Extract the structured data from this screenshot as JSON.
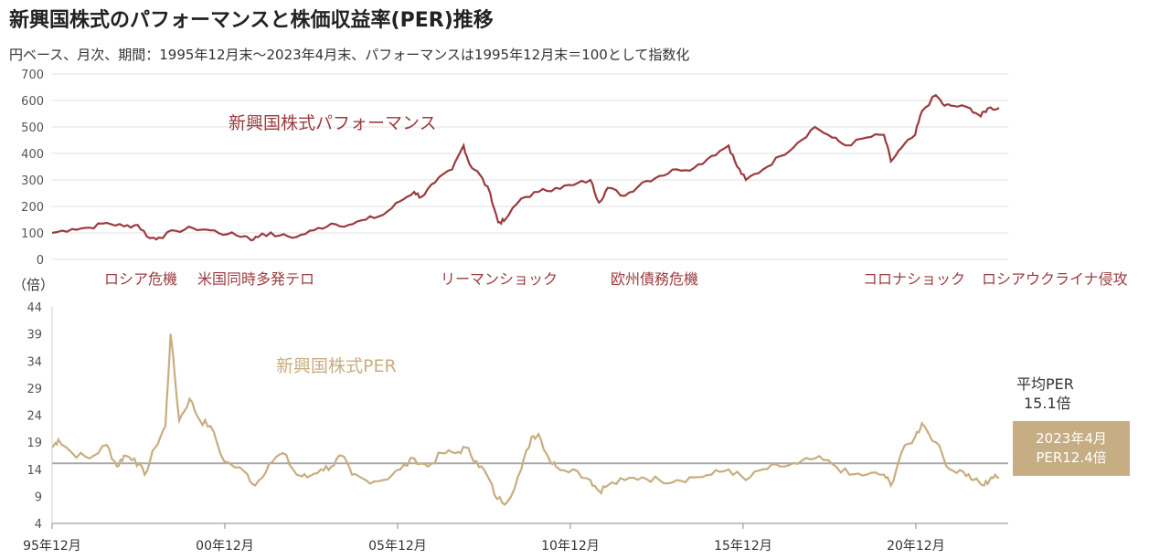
{
  "title": "新興国株式のパフォーマンスと株価収益率(PER)推移",
  "subtitle": "円ベース、月次、期間：1995年12月末～2023年4月末、パフォーマンスは1995年12月末＝100として指数化",
  "colors": {
    "performance": "#9b3b3f",
    "per": "#c8ad7f",
    "avg": "#a9a9a9",
    "box": "#c6ad84"
  },
  "chart_data": [
    {
      "type": "line",
      "series": [
        {
          "name": "新興国株式パフォーマンス",
          "x_range": [
            "1995-12",
            "2023-04"
          ],
          "points": [
            [
              1995.92,
              100
            ],
            [
              1996.5,
              115
            ],
            [
              1997.0,
              120
            ],
            [
              1997.5,
              138
            ],
            [
              1998.0,
              125
            ],
            [
              1998.4,
              130
            ],
            [
              1998.75,
              80
            ],
            [
              1999.0,
              82
            ],
            [
              1999.5,
              108
            ],
            [
              2000.0,
              118
            ],
            [
              2000.5,
              110
            ],
            [
              2001.0,
              95
            ],
            [
              2001.5,
              88
            ],
            [
              2001.75,
              75
            ],
            [
              2002.0,
              98
            ],
            [
              2002.5,
              90
            ],
            [
              2003.0,
              85
            ],
            [
              2003.5,
              110
            ],
            [
              2004.0,
              135
            ],
            [
              2004.5,
              130
            ],
            [
              2005.0,
              150
            ],
            [
              2005.5,
              168
            ],
            [
              2006.0,
              220
            ],
            [
              2006.4,
              255
            ],
            [
              2006.6,
              235
            ],
            [
              2007.0,
              290
            ],
            [
              2007.5,
              340
            ],
            [
              2007.83,
              430
            ],
            [
              2008.0,
              360
            ],
            [
              2008.3,
              320
            ],
            [
              2008.6,
              250
            ],
            [
              2008.83,
              140
            ],
            [
              2009.0,
              145
            ],
            [
              2009.5,
              230
            ],
            [
              2010.0,
              255
            ],
            [
              2010.5,
              270
            ],
            [
              2011.0,
              280
            ],
            [
              2011.5,
              300
            ],
            [
              2011.75,
              215
            ],
            [
              2012.0,
              270
            ],
            [
              2012.5,
              240
            ],
            [
              2013.0,
              290
            ],
            [
              2013.5,
              315
            ],
            [
              2014.0,
              340
            ],
            [
              2014.5,
              345
            ],
            [
              2015.0,
              390
            ],
            [
              2015.5,
              430
            ],
            [
              2015.75,
              350
            ],
            [
              2016.0,
              300
            ],
            [
              2016.5,
              340
            ],
            [
              2017.0,
              390
            ],
            [
              2017.5,
              440
            ],
            [
              2018.0,
              500
            ],
            [
              2018.5,
              460
            ],
            [
              2018.9,
              430
            ],
            [
              2019.5,
              460
            ],
            [
              2020.0,
              470
            ],
            [
              2020.2,
              370
            ],
            [
              2020.5,
              420
            ],
            [
              2020.9,
              470
            ],
            [
              2021.1,
              560
            ],
            [
              2021.5,
              620
            ],
            [
              2021.75,
              580
            ],
            [
              2022.0,
              580
            ],
            [
              2022.5,
              570
            ],
            [
              2022.8,
              540
            ],
            [
              2023.0,
              570
            ],
            [
              2023.33,
              572
            ]
          ]
        }
      ],
      "ylim": [
        0,
        700
      ],
      "yticks": [
        "0",
        "100",
        "200",
        "300",
        "400",
        "500",
        "600",
        "700"
      ],
      "series_label": "新興国株式パフォーマンス",
      "annotations": [
        "ロシア危機",
        "米国同時多発テロ",
        "リーマンショック",
        "欧州債務危機",
        "コロナショック",
        "ロシアウクライナ侵攻"
      ]
    },
    {
      "type": "line",
      "series": [
        {
          "name": "新興国株式PER",
          "points": [
            [
              1995.92,
              18
            ],
            [
              1996.1,
              19.5
            ],
            [
              1996.5,
              17
            ],
            [
              1997.0,
              16
            ],
            [
              1997.5,
              18.5
            ],
            [
              1997.8,
              14.5
            ],
            [
              1998.0,
              16.5
            ],
            [
              1998.3,
              16
            ],
            [
              1998.6,
              13
            ],
            [
              1998.9,
              18
            ],
            [
              1999.2,
              22
            ],
            [
              1999.35,
              39
            ],
            [
              1999.6,
              23
            ],
            [
              1999.9,
              27
            ],
            [
              2000.2,
              23
            ],
            [
              2000.5,
              22
            ],
            [
              2000.9,
              15.5
            ],
            [
              2001.5,
              13.5
            ],
            [
              2001.8,
              11
            ],
            [
              2002.2,
              15
            ],
            [
              2002.6,
              17
            ],
            [
              2003.0,
              13
            ],
            [
              2003.3,
              12.5
            ],
            [
              2003.7,
              14
            ],
            [
              2004.0,
              14.5
            ],
            [
              2004.3,
              16.5
            ],
            [
              2004.6,
              13
            ],
            [
              2005.0,
              12
            ],
            [
              2005.5,
              12
            ],
            [
              2006.0,
              14
            ],
            [
              2006.4,
              16
            ],
            [
              2006.8,
              14.5
            ],
            [
              2007.2,
              17
            ],
            [
              2007.6,
              17
            ],
            [
              2007.9,
              18
            ],
            [
              2008.2,
              15.5
            ],
            [
              2008.5,
              13
            ],
            [
              2008.8,
              8.5
            ],
            [
              2009.1,
              8
            ],
            [
              2009.5,
              14
            ],
            [
              2009.8,
              20
            ],
            [
              2010.0,
              20.5
            ],
            [
              2010.3,
              16
            ],
            [
              2010.5,
              14.5
            ],
            [
              2011.0,
              14
            ],
            [
              2011.5,
              12
            ],
            [
              2011.75,
              10
            ],
            [
              2012.0,
              11
            ],
            [
              2012.5,
              12
            ],
            [
              2013.0,
              12.5
            ],
            [
              2013.5,
              12
            ],
            [
              2014.0,
              12
            ],
            [
              2014.5,
              12.5
            ],
            [
              2015.0,
              13
            ],
            [
              2015.5,
              14
            ],
            [
              2016.0,
              12
            ],
            [
              2016.5,
              14
            ],
            [
              2017.0,
              14.5
            ],
            [
              2017.5,
              15
            ],
            [
              2018.0,
              16
            ],
            [
              2018.5,
              15
            ],
            [
              2019.0,
              13
            ],
            [
              2019.5,
              13
            ],
            [
              2020.0,
              13
            ],
            [
              2020.2,
              11
            ],
            [
              2020.5,
              17
            ],
            [
              2020.9,
              20
            ],
            [
              2021.1,
              22.5
            ],
            [
              2021.5,
              19
            ],
            [
              2021.9,
              14
            ],
            [
              2022.3,
              13.5
            ],
            [
              2022.6,
              12
            ],
            [
              2022.9,
              11
            ],
            [
              2023.1,
              12.5
            ],
            [
              2023.33,
              12.4
            ]
          ]
        }
      ],
      "ylim": [
        4,
        44
      ],
      "yticks": [
        "4",
        "9",
        "14",
        "19",
        "24",
        "29",
        "34",
        "39",
        "44"
      ],
      "y_unit": "（倍）",
      "average": 15.1,
      "average_label": "平均PER",
      "average_value": "15.1倍",
      "series_label": "新興国株式PER",
      "latest_box": [
        "2023年4月",
        "PER12.4倍"
      ],
      "categories": [
        "95年12月",
        "00年12月",
        "05年12月",
        "10年12月",
        "15年12月",
        "20年12月"
      ]
    }
  ]
}
